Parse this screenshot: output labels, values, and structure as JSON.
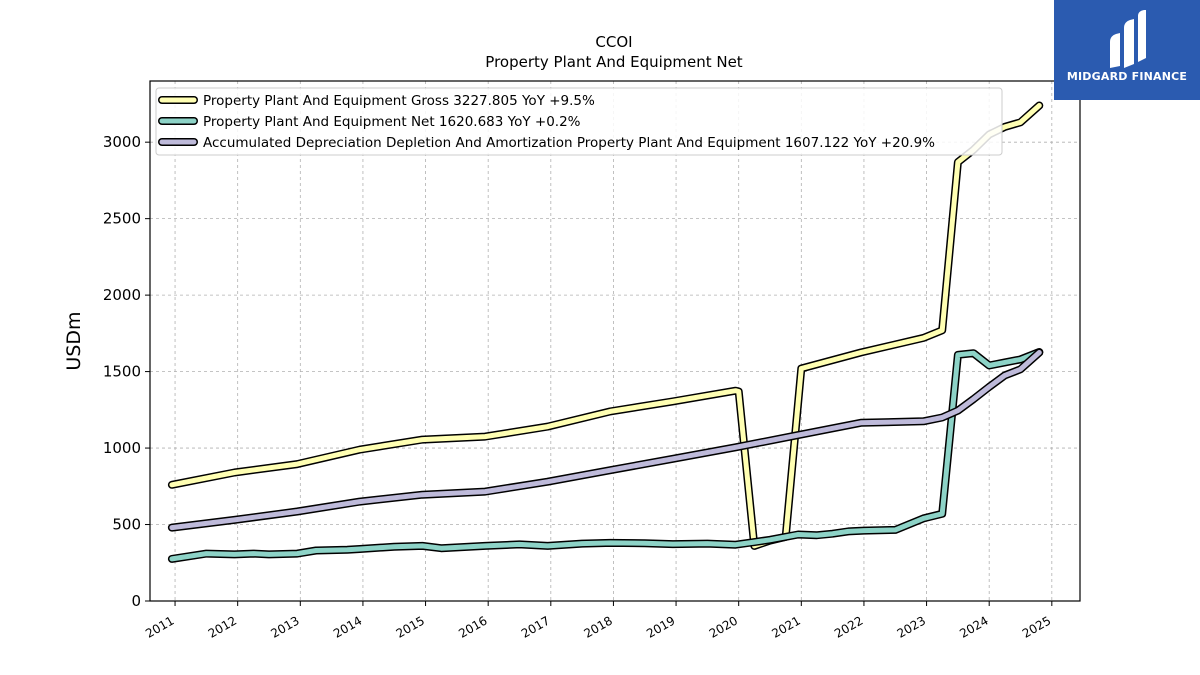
{
  "chart_data": {
    "type": "line",
    "title": "CCOI",
    "subtitle": "Property Plant And Equipment Net",
    "xlabel": "",
    "ylabel": "USDm",
    "xlim": [
      2010.6,
      2025.45
    ],
    "ylim": [
      0,
      3400
    ],
    "x_ticks": [
      "2011",
      "2012",
      "2013",
      "2014",
      "2015",
      "2016",
      "2017",
      "2018",
      "2019",
      "2020",
      "2021",
      "2022",
      "2023",
      "2024",
      "2025"
    ],
    "y_ticks": [
      "0",
      "500",
      "1000",
      "1500",
      "2000",
      "2500",
      "3000"
    ],
    "grid": true,
    "legend_position": "top-left",
    "series": [
      {
        "name": "Property Plant And Equipment Gross  3227.805 YoY +9.5%",
        "color": "#ffffb3",
        "points": [
          [
            2010.95,
            760
          ],
          [
            2011.95,
            840
          ],
          [
            2012.95,
            895
          ],
          [
            2013.95,
            990
          ],
          [
            2014.95,
            1055
          ],
          [
            2015.95,
            1075
          ],
          [
            2016.95,
            1140
          ],
          [
            2017.95,
            1240
          ],
          [
            2018.95,
            1305
          ],
          [
            2019.95,
            1375
          ],
          [
            2020.0,
            1370
          ],
          [
            2020.25,
            360
          ],
          [
            2020.5,
            395
          ],
          [
            2020.75,
            420
          ],
          [
            2021.0,
            1520
          ],
          [
            2021.95,
            1625
          ],
          [
            2022.95,
            1720
          ],
          [
            2023.25,
            1770
          ],
          [
            2023.5,
            2870
          ],
          [
            2023.75,
            2950
          ],
          [
            2024.0,
            3050
          ],
          [
            2024.25,
            3100
          ],
          [
            2024.5,
            3130
          ],
          [
            2024.8,
            3240
          ]
        ]
      },
      {
        "name": "Property Plant And Equipment Net  1620.683 YoY +0.2%",
        "color": "#8dd3c7",
        "points": [
          [
            2010.95,
            275
          ],
          [
            2011.5,
            310
          ],
          [
            2011.95,
            305
          ],
          [
            2012.25,
            310
          ],
          [
            2012.5,
            305
          ],
          [
            2012.95,
            310
          ],
          [
            2013.25,
            330
          ],
          [
            2013.75,
            335
          ],
          [
            2013.95,
            340
          ],
          [
            2014.5,
            355
          ],
          [
            2014.95,
            360
          ],
          [
            2015.25,
            345
          ],
          [
            2015.95,
            360
          ],
          [
            2016.5,
            370
          ],
          [
            2016.95,
            360
          ],
          [
            2017.5,
            375
          ],
          [
            2017.95,
            380
          ],
          [
            2018.5,
            378
          ],
          [
            2018.95,
            372
          ],
          [
            2019.5,
            375
          ],
          [
            2019.95,
            368
          ],
          [
            2020.25,
            385
          ],
          [
            2020.5,
            400
          ],
          [
            2020.95,
            435
          ],
          [
            2021.25,
            430
          ],
          [
            2021.5,
            440
          ],
          [
            2021.75,
            455
          ],
          [
            2022.0,
            460
          ],
          [
            2022.5,
            465
          ],
          [
            2022.95,
            540
          ],
          [
            2023.25,
            570
          ],
          [
            2023.5,
            1610
          ],
          [
            2023.75,
            1620
          ],
          [
            2024.0,
            1540
          ],
          [
            2024.25,
            1560
          ],
          [
            2024.5,
            1580
          ],
          [
            2024.8,
            1628
          ]
        ]
      },
      {
        "name": "Accumulated Depreciation Depletion And Amortization Property Plant And Equipment  1607.122 YoY +20.9%",
        "color": "#bebada",
        "points": [
          [
            2010.95,
            480
          ],
          [
            2011.95,
            530
          ],
          [
            2012.95,
            585
          ],
          [
            2013.95,
            650
          ],
          [
            2014.95,
            695
          ],
          [
            2015.95,
            715
          ],
          [
            2016.95,
            780
          ],
          [
            2017.95,
            855
          ],
          [
            2018.95,
            930
          ],
          [
            2019.95,
            1005
          ],
          [
            2020.95,
            1085
          ],
          [
            2021.95,
            1165
          ],
          [
            2022.95,
            1175
          ],
          [
            2023.25,
            1200
          ],
          [
            2023.5,
            1245
          ],
          [
            2023.75,
            1320
          ],
          [
            2024.0,
            1400
          ],
          [
            2024.25,
            1475
          ],
          [
            2024.5,
            1515
          ],
          [
            2024.8,
            1625
          ]
        ]
      }
    ]
  },
  "logo": {
    "text": "MIDGARD FINANCE",
    "bg_color": "#2b5bb0"
  }
}
